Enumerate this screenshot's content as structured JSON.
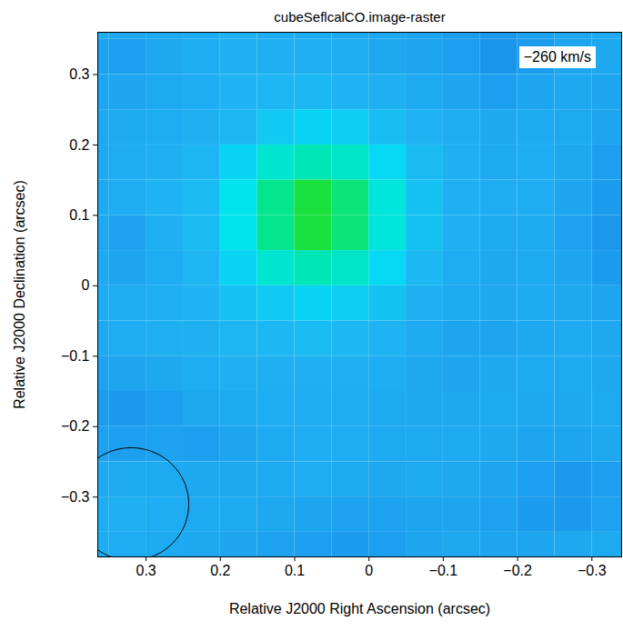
{
  "chart_data": {
    "type": "heatmap",
    "title": "cubeSeflcalCO.image-raster",
    "x_label": "Relative J2000 Right Ascension (arcsec)",
    "y_label": "Relative J2000 Declination (arcsec)",
    "annotation": "−260 km/s",
    "xlim": [
      0.365,
      -0.34
    ],
    "ylim": [
      -0.385,
      0.36
    ],
    "xticks": [
      0.3,
      0.2,
      0.1,
      0,
      -0.1,
      -0.2,
      -0.3
    ],
    "yticks": [
      -0.3,
      -0.2,
      -0.1,
      0,
      0.1,
      0.2,
      0.3
    ],
    "x": [
      0.375,
      0.325,
      0.275,
      0.225,
      0.175,
      0.125,
      0.075,
      0.025,
      -0.025,
      -0.075,
      -0.125,
      -0.175,
      -0.225,
      -0.275,
      -0.325
    ],
    "y": [
      0.375,
      0.325,
      0.275,
      0.225,
      0.175,
      0.125,
      0.075,
      0.025,
      -0.025,
      -0.075,
      -0.125,
      -0.175,
      -0.225,
      -0.275,
      -0.325,
      -0.375
    ],
    "zlim": [
      0,
      1
    ],
    "z": [
      [
        0.3,
        0.28,
        0.29,
        0.3,
        0.31,
        0.3,
        0.3,
        0.29,
        0.28,
        0.27,
        0.24,
        0.22,
        0.26,
        0.28,
        0.29
      ],
      [
        0.26,
        0.25,
        0.28,
        0.3,
        0.31,
        0.31,
        0.31,
        0.3,
        0.28,
        0.27,
        0.25,
        0.21,
        0.24,
        0.27,
        0.28
      ],
      [
        0.27,
        0.27,
        0.29,
        0.3,
        0.32,
        0.33,
        0.34,
        0.32,
        0.31,
        0.29,
        0.27,
        0.25,
        0.27,
        0.28,
        0.27
      ],
      [
        0.28,
        0.29,
        0.3,
        0.31,
        0.33,
        0.4,
        0.44,
        0.42,
        0.36,
        0.32,
        0.3,
        0.28,
        0.29,
        0.29,
        0.27
      ],
      [
        0.29,
        0.3,
        0.31,
        0.33,
        0.44,
        0.6,
        0.69,
        0.63,
        0.46,
        0.35,
        0.31,
        0.29,
        0.3,
        0.28,
        0.25
      ],
      [
        0.29,
        0.3,
        0.32,
        0.35,
        0.52,
        0.79,
        0.96,
        0.84,
        0.57,
        0.37,
        0.31,
        0.3,
        0.3,
        0.27,
        0.24
      ],
      [
        0.28,
        0.26,
        0.31,
        0.35,
        0.52,
        0.79,
        0.96,
        0.84,
        0.57,
        0.37,
        0.31,
        0.29,
        0.29,
        0.26,
        0.22
      ],
      [
        0.29,
        0.27,
        0.3,
        0.33,
        0.44,
        0.6,
        0.69,
        0.63,
        0.46,
        0.34,
        0.3,
        0.28,
        0.29,
        0.27,
        0.24
      ],
      [
        0.3,
        0.3,
        0.31,
        0.32,
        0.37,
        0.4,
        0.44,
        0.42,
        0.38,
        0.31,
        0.29,
        0.28,
        0.29,
        0.28,
        0.27
      ],
      [
        0.29,
        0.3,
        0.31,
        0.31,
        0.33,
        0.34,
        0.35,
        0.34,
        0.32,
        0.29,
        0.27,
        0.27,
        0.28,
        0.29,
        0.28
      ],
      [
        0.26,
        0.27,
        0.28,
        0.3,
        0.31,
        0.31,
        0.31,
        0.31,
        0.3,
        0.28,
        0.27,
        0.28,
        0.29,
        0.29,
        0.28
      ],
      [
        0.24,
        0.23,
        0.25,
        0.28,
        0.29,
        0.3,
        0.3,
        0.3,
        0.29,
        0.28,
        0.28,
        0.29,
        0.28,
        0.28,
        0.29
      ],
      [
        0.26,
        0.25,
        0.26,
        0.25,
        0.27,
        0.29,
        0.3,
        0.3,
        0.29,
        0.29,
        0.29,
        0.28,
        0.27,
        0.27,
        0.28
      ],
      [
        0.29,
        0.29,
        0.29,
        0.28,
        0.28,
        0.29,
        0.3,
        0.29,
        0.28,
        0.29,
        0.28,
        0.27,
        0.25,
        0.23,
        0.25
      ],
      [
        0.3,
        0.31,
        0.3,
        0.29,
        0.29,
        0.28,
        0.27,
        0.26,
        0.26,
        0.27,
        0.27,
        0.26,
        0.24,
        0.23,
        0.26
      ],
      [
        0.3,
        0.3,
        0.29,
        0.28,
        0.27,
        0.26,
        0.25,
        0.24,
        0.25,
        0.27,
        0.28,
        0.27,
        0.27,
        0.28,
        0.29
      ]
    ],
    "beam": {
      "x": 0.32,
      "y": -0.31,
      "major": 0.16,
      "minor": 0.155
    }
  }
}
